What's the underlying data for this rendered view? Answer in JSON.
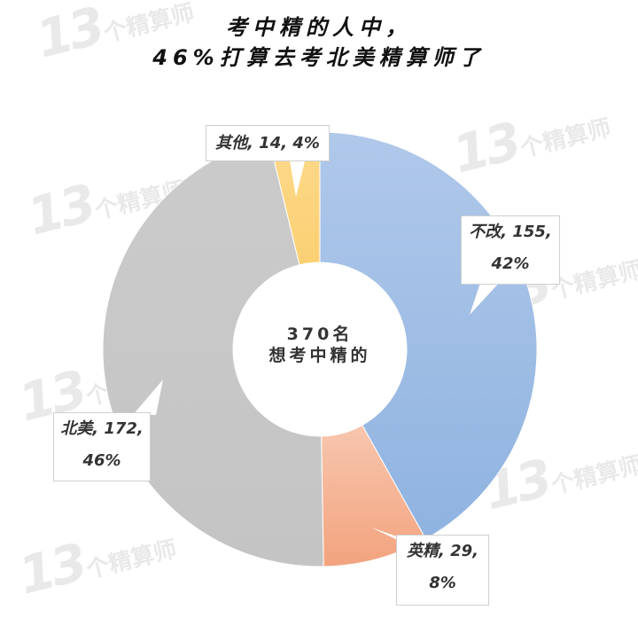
{
  "title": {
    "line1": "考中精的人中，",
    "line2": "46%打算去考北美精算师了"
  },
  "center": {
    "line1": "370名",
    "line2": "想考中精的"
  },
  "watermark": {
    "number": "13",
    "text": "个精算师"
  },
  "labels": {
    "buGai": {
      "line1": "不改, 155,",
      "line2": "42%"
    },
    "yingJing": {
      "line1": "英精, 29,",
      "line2": "8%"
    },
    "beiMei": {
      "line1": "北美, 172,",
      "line2": "46%"
    },
    "qiTa": {
      "line1": "其他, 14, 4%"
    }
  },
  "chart_data": {
    "type": "pie",
    "variant": "donut",
    "title": "考中精的人中，46%打算去考北美精算师了",
    "center_label": "370名 想考中精的",
    "total": 370,
    "categories": [
      "不改",
      "英精",
      "北美",
      "其他"
    ],
    "values": [
      155,
      29,
      172,
      14
    ],
    "percentages": [
      42,
      8,
      46,
      4
    ],
    "colors": [
      "#9dbde6",
      "#f4aa88",
      "#c8c8c8",
      "#fcd47e"
    ],
    "start_angle": "12 o'clock",
    "direction": "clockwise",
    "legend": "none (data labels with callouts)"
  }
}
